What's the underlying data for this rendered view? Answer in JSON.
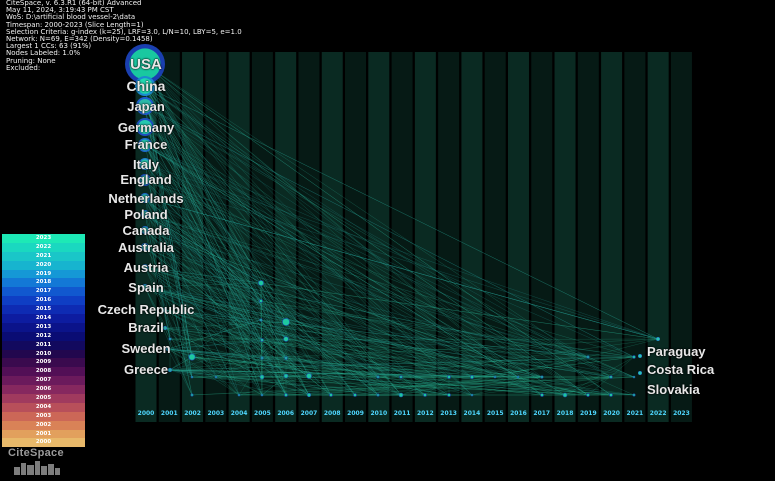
{
  "header": {
    "lines": [
      "CiteSpace, v. 6.3.R1 (64-bit) Advanced",
      "May 11, 2024, 3:19:43 PM CST",
      "WoS: D:\\artificial blood vessel-2\\data",
      "Timespan: 2000-2023 (Slice Length=1)",
      "Selection Criteria: g-index (k=25), LRF=3.0, L/N=10, LBY=5, e=1.0",
      "Network: N=69, E=342 (Density=0.1458)",
      "Largest 1 CCs: 63 (91%)",
      "Nodes Labeled: 1.0%",
      "Pruning: None",
      "Excluded:"
    ]
  },
  "nodes": [
    {
      "label": "USA",
      "year": "2000",
      "size": 20,
      "color": "#19c8a0",
      "ring": "#1a3fb0"
    },
    {
      "label": "China",
      "year": "2000",
      "size": 10,
      "color": "#20d8b0",
      "ring": "#1b8ad0"
    },
    {
      "label": "Japan",
      "year": "2000",
      "size": 9,
      "color": "#2ab8a8",
      "ring": "#1e5bd0"
    },
    {
      "label": "Germany",
      "year": "2000",
      "size": 9,
      "color": "#25c8b0",
      "ring": "#1e4fc0"
    },
    {
      "label": "France",
      "year": "2000",
      "size": 7,
      "color": "#27c0a8",
      "ring": "#1e6ad0"
    },
    {
      "label": "Italy",
      "year": "2000",
      "size": 6,
      "color": "#2ac8b0",
      "ring": "#1e80d0"
    },
    {
      "label": "England",
      "year": "2000",
      "size": 6,
      "color": "#2ab8a8",
      "ring": "#1e4fc0"
    },
    {
      "label": "Netherlands",
      "year": "2000",
      "size": 5,
      "color": "#2ab0a0",
      "ring": "#1f6ad0"
    },
    {
      "label": "Poland",
      "year": "2000",
      "size": 4,
      "color": "#2aa8a0",
      "ring": "#1f6ad0"
    },
    {
      "label": "Canada",
      "year": "2000",
      "size": 4,
      "color": "#2aa8a0",
      "ring": "#1f6ad0"
    },
    {
      "label": "Australia",
      "year": "2000",
      "size": 4,
      "color": "#2aa8a0",
      "ring": "#1f6ad0"
    },
    {
      "label": "Austria",
      "year": "2000",
      "size": 3,
      "color": "#2aa8a0",
      "ring": "#1f6ad0"
    },
    {
      "label": "Spain",
      "year": "2000",
      "size": 3,
      "color": "#2aa8a0",
      "ring": "#1f6ad0"
    },
    {
      "label": "Czech Republic",
      "year": "2001",
      "size": 2,
      "color": "#2aa8a0",
      "ring": "#1f6ad0"
    },
    {
      "label": "Brazil",
      "year": "2001",
      "size": 2,
      "color": "#2aa8a0",
      "ring": "#1f6ad0"
    },
    {
      "label": "Sweden",
      "year": "2001",
      "size": 2,
      "color": "#2aa8a0",
      "ring": "#1f6ad0"
    },
    {
      "label": "Greece",
      "year": "2001",
      "size": 2,
      "color": "#2aa8a0",
      "ring": "#1f6ad0"
    },
    {
      "label": "Paraguay",
      "year": "2022",
      "size": 2,
      "color": "#2ac8b0",
      "ring": "#1f6ad0"
    },
    {
      "label": "Costa Rica",
      "year": "2022",
      "size": 2,
      "color": "#2ac8b0",
      "ring": "#1f6ad0"
    },
    {
      "label": "Slovakia",
      "year": "2022",
      "size": 2,
      "color": "#2ac8b0",
      "ring": "#1f6ad0"
    }
  ],
  "timeline": {
    "years": [
      "2000",
      "2001",
      "2002",
      "2003",
      "2004",
      "2005",
      "2006",
      "2007",
      "2008",
      "2009",
      "2010",
      "2011",
      "2012",
      "2013",
      "2014",
      "2015",
      "2016",
      "2017",
      "2018",
      "2019",
      "2020",
      "2021",
      "2022",
      "2023"
    ]
  },
  "legend": {
    "years": [
      "2023",
      "2022",
      "2021",
      "2020",
      "2019",
      "2018",
      "2017",
      "2016",
      "2015",
      "2014",
      "2013",
      "2012",
      "2011",
      "2010",
      "2009",
      "2008",
      "2007",
      "2006",
      "2005",
      "2004",
      "2003",
      "2002",
      "2001",
      "2000"
    ],
    "colors": [
      "#1de9b6",
      "#1ad8c0",
      "#1ac6c8",
      "#17b4cf",
      "#1598d6",
      "#1378d6",
      "#1158cf",
      "#0f3ec4",
      "#0e2bb3",
      "#0d1ca0",
      "#0b138a",
      "#0a0c74",
      "#12095e",
      "#22074e",
      "#3a0a4e",
      "#520f56",
      "#6b1a5c",
      "#86285f",
      "#a03a5e",
      "#b84f5a",
      "#cc6757",
      "#d98257",
      "#e2a05d",
      "#e8b96a"
    ]
  },
  "branding": {
    "logo_text": "CiteSpace"
  }
}
